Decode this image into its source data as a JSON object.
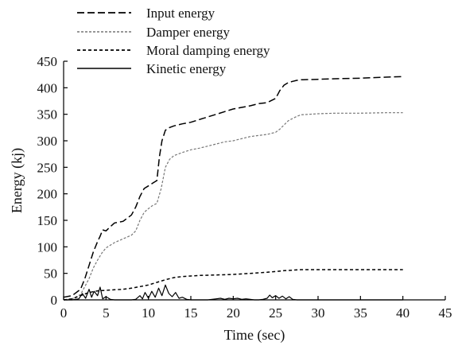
{
  "chart_data": {
    "type": "line",
    "xlabel": "Time (sec)",
    "ylabel": "Energy (kj)",
    "xlim": [
      0,
      45
    ],
    "ylim": [
      0,
      450
    ],
    "x_ticks": [
      "0",
      "5",
      "10",
      "15",
      "20",
      "25",
      "30",
      "35",
      "40",
      "45"
    ],
    "y_ticks": [
      "0",
      "50",
      "100",
      "150",
      "200",
      "250",
      "300",
      "350",
      "400",
      "450"
    ],
    "grid": false,
    "legend_position": "top-left",
    "series": [
      {
        "name": "Input energy",
        "style": "dashed",
        "color": "#000000",
        "x": [
          0,
          1,
          2,
          2.5,
          3,
          3.5,
          4,
          4.3,
          4.6,
          5,
          5.5,
          6,
          7,
          8,
          8.5,
          9,
          9.5,
          10,
          10.5,
          11,
          11.3,
          11.6,
          12,
          12.5,
          13,
          14,
          15,
          16,
          17,
          18,
          19,
          20,
          21,
          22,
          23,
          24,
          25,
          25.5,
          26,
          26.5,
          27,
          27.5,
          28,
          30,
          32,
          35,
          38,
          40
        ],
        "y": [
          5,
          8,
          20,
          40,
          65,
          90,
          110,
          120,
          132,
          130,
          138,
          145,
          148,
          160,
          175,
          195,
          210,
          215,
          220,
          225,
          270,
          300,
          320,
          325,
          328,
          332,
          335,
          340,
          345,
          350,
          355,
          360,
          363,
          366,
          370,
          372,
          380,
          395,
          405,
          410,
          412,
          414,
          415,
          416,
          417,
          418,
          420,
          421
        ]
      },
      {
        "name": "Damper energy",
        "style": "dotted-gray",
        "color": "#777777",
        "x": [
          0,
          1,
          2,
          2.5,
          3,
          3.5,
          4,
          4.5,
          5,
          6,
          7,
          8,
          8.5,
          9,
          9.5,
          10,
          10.5,
          11,
          11.5,
          12,
          12.5,
          13,
          14,
          15,
          16,
          17,
          18,
          19,
          20,
          21,
          22,
          23,
          24,
          25,
          25.5,
          26,
          26.5,
          27,
          27.5,
          28,
          30,
          32,
          35,
          38,
          40
        ],
        "y": [
          0,
          2,
          10,
          25,
          40,
          60,
          75,
          88,
          98,
          108,
          115,
          122,
          130,
          150,
          165,
          172,
          178,
          182,
          210,
          250,
          265,
          272,
          278,
          283,
          286,
          290,
          294,
          298,
          300,
          304,
          308,
          310,
          312,
          316,
          322,
          330,
          338,
          342,
          346,
          349,
          351,
          352,
          352,
          353,
          353
        ]
      },
      {
        "name": "Moral damping energy",
        "style": "dashed-fine",
        "color": "#000000",
        "x": [
          0,
          1,
          2,
          3,
          4,
          5,
          6,
          7,
          8,
          9,
          10,
          11,
          12,
          13,
          14,
          15,
          16,
          18,
          20,
          22,
          24,
          26,
          28,
          30,
          32,
          35,
          38,
          40
        ],
        "y": [
          0,
          2,
          8,
          14,
          17,
          18,
          19,
          20,
          22,
          25,
          28,
          33,
          38,
          42,
          44,
          45,
          46,
          47,
          48,
          50,
          52,
          55,
          57,
          57,
          57,
          57,
          57,
          57
        ]
      },
      {
        "name": "Kinetic energy",
        "style": "solid",
        "color": "#000000",
        "x": [
          0,
          1,
          1.8,
          2.2,
          2.6,
          3.0,
          3.3,
          3.6,
          4.0,
          4.3,
          4.6,
          5.0,
          5.5,
          6,
          7,
          8,
          8.5,
          9.0,
          9.3,
          9.6,
          10.0,
          10.4,
          10.8,
          11.2,
          11.6,
          12.0,
          12.4,
          12.8,
          13.2,
          13.6,
          14.0,
          14.5,
          15,
          16,
          17,
          18,
          18.5,
          19,
          19.5,
          20,
          20.5,
          21,
          21.5,
          22,
          22.5,
          23,
          23.5,
          24,
          24.3,
          24.6,
          25.0,
          25.4,
          25.8,
          26.2,
          26.6,
          27.0,
          27.5,
          28,
          30,
          32,
          35,
          38,
          40
        ],
        "y": [
          0,
          0,
          2,
          12,
          3,
          20,
          5,
          16,
          8,
          24,
          2,
          6,
          1,
          0,
          0,
          0,
          1,
          8,
          2,
          14,
          3,
          16,
          5,
          22,
          8,
          28,
          12,
          6,
          14,
          3,
          5,
          1,
          0,
          0,
          0,
          2,
          3,
          1,
          3,
          2,
          3,
          1,
          2,
          1,
          0,
          0,
          1,
          3,
          9,
          4,
          8,
          3,
          7,
          2,
          6,
          1,
          0,
          0,
          0,
          0,
          0,
          0,
          0
        ]
      }
    ]
  }
}
